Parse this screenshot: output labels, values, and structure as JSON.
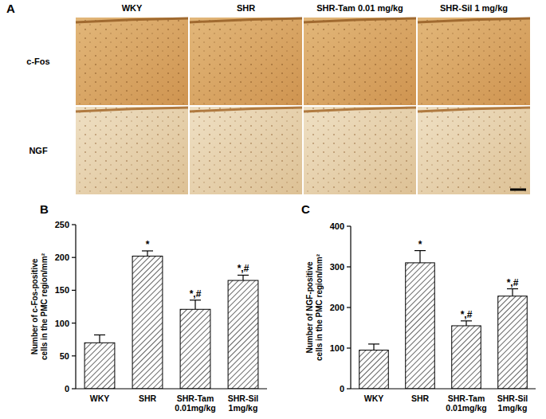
{
  "panel_a": {
    "label": "A",
    "columns": [
      "WKY",
      "SHR",
      "SHR-Tam 0.01 mg/kg",
      "SHR-Sil 1 mg/kg"
    ],
    "rows": [
      "c-Fos",
      "NGF"
    ]
  },
  "chart_data": [
    {
      "type": "bar",
      "title": "B",
      "categories": [
        "WKY",
        "SHR",
        "SHR-Tam 0.01mg/kg",
        "SHR-Sil 1mg/kg"
      ],
      "values": [
        70,
        202,
        121,
        165
      ],
      "errors": [
        12,
        8,
        14,
        8
      ],
      "significance": [
        null,
        "*",
        "*,#",
        "*,#"
      ],
      "y_label": "Number of c-Fos-positive cells in the PMC region/mm²",
      "color": "#222222",
      "ylim": [
        0,
        250
      ],
      "yticks": [
        0,
        50,
        100,
        150,
        200,
        250
      ],
      "grid": false
    },
    {
      "type": "bar",
      "title": "C",
      "categories": [
        "WKY",
        "SHR",
        "SHR-Tam 0.01mg/kg",
        "SHR-Sil 1mg/kg"
      ],
      "values": [
        95,
        310,
        155,
        228
      ],
      "errors": [
        15,
        30,
        12,
        18
      ],
      "significance": [
        null,
        "*",
        "*,#",
        "*,#"
      ],
      "y_label": "Number of NGF-positive cells in the PMC region/mm²",
      "color": "#222222",
      "ylim": [
        0,
        400
      ],
      "yticks": [
        0,
        100,
        200,
        300,
        400
      ],
      "grid": false
    }
  ]
}
